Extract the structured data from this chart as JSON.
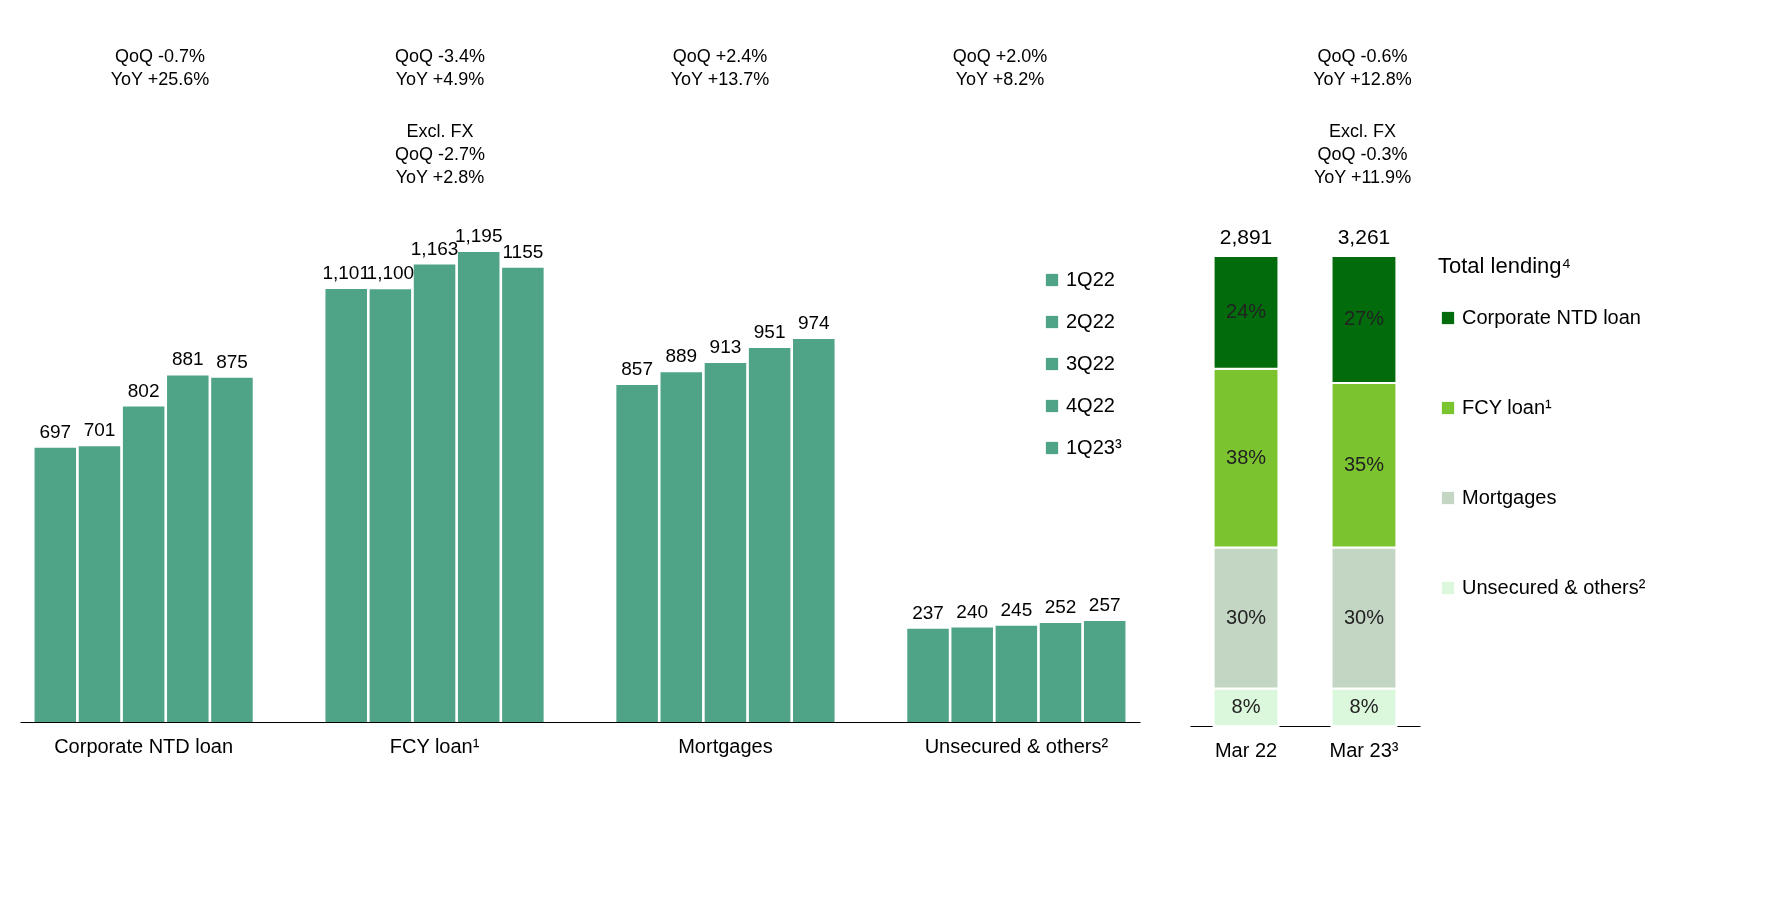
{
  "chart_data": [
    {
      "type": "bar",
      "categories": [
        "Corporate NTD loan",
        "FCY loan¹",
        "Mortgages",
        "Unsecured & others²"
      ],
      "series": [
        {
          "name": "1Q22",
          "color": "#4fa386",
          "values": [
            697,
            1101,
            857,
            237
          ],
          "value_labels": [
            "697",
            "1,101",
            "857",
            "237"
          ]
        },
        {
          "name": "2Q22",
          "color": "#4fa386",
          "values": [
            701,
            1100,
            889,
            240
          ],
          "value_labels": [
            "701",
            "1,100",
            "889",
            "240"
          ]
        },
        {
          "name": "3Q22",
          "color": "#4fa386",
          "values": [
            802,
            1163,
            913,
            245
          ],
          "value_labels": [
            "802",
            "1,163",
            "913",
            "245"
          ]
        },
        {
          "name": "4Q22",
          "color": "#4fa386",
          "values": [
            881,
            1195,
            951,
            252
          ],
          "value_labels": [
            "881",
            "1,195",
            "951",
            "252"
          ]
        },
        {
          "name": "1Q23³",
          "color": "#4fa386",
          "values": [
            875,
            1155,
            974,
            257
          ],
          "value_labels": [
            "875",
            "1155",
            "974",
            "257"
          ]
        }
      ],
      "annotations": [
        "QoQ  -0.7%\nYoY +25.6%",
        "QoQ  -3.4%\nYoY +4.9%",
        "Excl. FX\nQoQ -2.7%\nYoY +2.8%",
        "QoQ  +2.4%\nYoY +13.7%",
        "QoQ  +2.0%\nYoY +8.2%"
      ],
      "legend": "top right",
      "tick_labels": "x"
    },
    {
      "type": "bar",
      "categories": [
        "Mar 22",
        "Mar 23³"
      ],
      "stacked": true,
      "series": [
        {
          "name": "Unsecured & others²",
          "color": "#dcf8dc",
          "values": [
            8,
            8
          ],
          "value_labels": [
            "8%",
            "8%"
          ]
        },
        {
          "name": "Mortgages",
          "color": "#c3d5c3",
          "values": [
            30,
            30
          ],
          "value_labels": [
            "30%",
            "30%"
          ]
        },
        {
          "name": "FCY loan¹",
          "color": "#7cc42f",
          "values": [
            38,
            35
          ],
          "value_labels": [
            "38%",
            "35%"
          ]
        },
        {
          "name": "Corporate NTD loan",
          "color": "#026b0c",
          "values": [
            24,
            27
          ],
          "value_labels": [
            "24%",
            "27%"
          ]
        }
      ],
      "annotations": [
        "2,891",
        "3,261",
        "QoQ  -0.6%\nYoY +12.8%",
        "Excl. FX\nQoQ -0.3%\nYoY +11.9%"
      ],
      "legend_title": "Total lending⁴",
      "legend": "right",
      "tick_labels": "x"
    }
  ]
}
